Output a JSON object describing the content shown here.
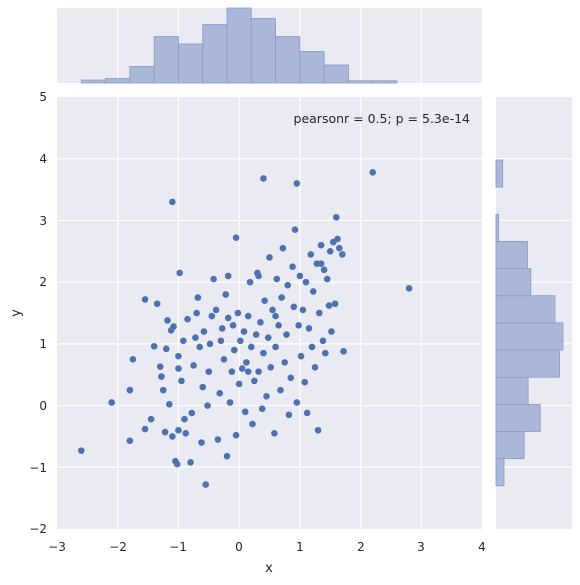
{
  "chart_data": {
    "type": "scatter",
    "xlabel": "x",
    "ylabel": "y",
    "xlim": [
      -3,
      4
    ],
    "ylim": [
      -2,
      5
    ],
    "xticks": [
      "−3",
      "−2",
      "−1",
      "0",
      "1",
      "2",
      "3",
      "4"
    ],
    "yticks": [
      "−2",
      "−1",
      "0",
      "1",
      "2",
      "3",
      "4",
      "5"
    ],
    "grid": true,
    "annotation": "pearsonr = 0.5; p = 5.3e-14",
    "colors": {
      "background": "#eaeaf2",
      "points": "#4c72b0",
      "hist": "#a9b8d8",
      "grid": "#ffffff"
    },
    "points": [
      [
        -2.6,
        -0.73
      ],
      [
        -2.1,
        0.05
      ],
      [
        -1.8,
        -0.57
      ],
      [
        -1.8,
        0.25
      ],
      [
        -1.75,
        0.75
      ],
      [
        -1.55,
        -0.38
      ],
      [
        -1.55,
        1.72
      ],
      [
        -1.45,
        -0.22
      ],
      [
        -1.4,
        0.96
      ],
      [
        -1.35,
        1.65
      ],
      [
        -1.3,
        0.63
      ],
      [
        -1.28,
        0.47
      ],
      [
        -1.25,
        0.25
      ],
      [
        -1.22,
        -0.43
      ],
      [
        -1.2,
        0.92
      ],
      [
        -1.18,
        1.38
      ],
      [
        -1.15,
        0.02
      ],
      [
        -1.12,
        1.22
      ],
      [
        -1.1,
        -0.5
      ],
      [
        -1.08,
        1.28
      ],
      [
        -1.1,
        3.3
      ],
      [
        -1.05,
        -0.9
      ],
      [
        -1.02,
        -0.95
      ],
      [
        -1.0,
        -0.4
      ],
      [
        -1.0,
        0.8
      ],
      [
        -0.98,
        2.15
      ],
      [
        -0.95,
        0.4
      ],
      [
        -0.92,
        1.05
      ],
      [
        -0.9,
        -0.22
      ],
      [
        -0.88,
        -0.45
      ],
      [
        -0.85,
        1.4
      ],
      [
        -0.8,
        -0.92
      ],
      [
        -0.78,
        -0.12
      ],
      [
        -0.75,
        0.65
      ],
      [
        -0.72,
        1.1
      ],
      [
        -0.7,
        1.5
      ],
      [
        -0.68,
        1.75
      ],
      [
        -0.65,
        0.95
      ],
      [
        -0.62,
        -0.6
      ],
      [
        -0.6,
        0.3
      ],
      [
        -0.58,
        1.2
      ],
      [
        -0.55,
        -1.28
      ],
      [
        -0.52,
        0.0
      ],
      [
        -0.5,
        0.55
      ],
      [
        -0.48,
        1.0
      ],
      [
        -0.45,
        1.45
      ],
      [
        -0.42,
        2.05
      ],
      [
        -0.38,
        1.55
      ],
      [
        -0.35,
        -0.55
      ],
      [
        -0.32,
        0.2
      ],
      [
        -0.3,
        1.05
      ],
      [
        -0.28,
        1.25
      ],
      [
        -0.25,
        0.75
      ],
      [
        -0.22,
        1.8
      ],
      [
        -0.2,
        -0.82
      ],
      [
        -0.18,
        2.1
      ],
      [
        -0.15,
        0.05
      ],
      [
        -0.12,
        0.55
      ],
      [
        -0.1,
        1.3
      ],
      [
        -0.08,
        0.9
      ],
      [
        -0.05,
        -0.48
      ],
      [
        -0.02,
        1.5
      ],
      [
        0.0,
        0.35
      ],
      [
        0.02,
        1.05
      ],
      [
        0.05,
        0.6
      ],
      [
        0.08,
        1.2
      ],
      [
        0.1,
        -0.1
      ],
      [
        0.12,
        0.7
      ],
      [
        0.15,
        1.45
      ],
      [
        0.18,
        2.0
      ],
      [
        0.2,
        0.95
      ],
      [
        0.22,
        -0.3
      ],
      [
        0.25,
        0.4
      ],
      [
        0.28,
        1.15
      ],
      [
        0.3,
        2.15
      ],
      [
        0.32,
        0.55
      ],
      [
        0.35,
        1.35
      ],
      [
        0.38,
        -0.05
      ],
      [
        0.4,
        0.85
      ],
      [
        0.42,
        1.7
      ],
      [
        0.45,
        0.15
      ],
      [
        0.48,
        1.1
      ],
      [
        0.5,
        2.4
      ],
      [
        0.52,
        0.62
      ],
      [
        0.55,
        1.55
      ],
      [
        0.58,
        -0.45
      ],
      [
        0.6,
        0.95
      ],
      [
        0.62,
        2.05
      ],
      [
        0.65,
        1.3
      ],
      [
        0.68,
        0.25
      ],
      [
        0.7,
        1.75
      ],
      [
        0.72,
        2.55
      ],
      [
        0.75,
        0.7
      ],
      [
        0.78,
        1.15
      ],
      [
        0.8,
        1.95
      ],
      [
        0.82,
        -0.15
      ],
      [
        0.85,
        0.45
      ],
      [
        0.88,
        2.25
      ],
      [
        0.9,
        1.6
      ],
      [
        0.92,
        2.85
      ],
      [
        0.95,
        0.05
      ],
      [
        0.98,
        1.3
      ],
      [
        1.0,
        2.1
      ],
      [
        1.02,
        0.8
      ],
      [
        1.05,
        1.55
      ],
      [
        1.08,
        0.38
      ],
      [
        1.1,
        2.0
      ],
      [
        1.12,
        -0.12
      ],
      [
        1.15,
        1.25
      ],
      [
        1.18,
        2.45
      ],
      [
        1.2,
        0.95
      ],
      [
        1.22,
        1.85
      ],
      [
        1.25,
        0.62
      ],
      [
        1.28,
        2.3
      ],
      [
        1.3,
        -0.4
      ],
      [
        1.32,
        1.5
      ],
      [
        1.35,
        2.6
      ],
      [
        1.38,
        1.05
      ],
      [
        1.4,
        2.2
      ],
      [
        1.42,
        0.85
      ],
      [
        1.45,
        2.05
      ],
      [
        1.48,
        1.62
      ],
      [
        1.5,
        2.5
      ],
      [
        1.52,
        1.2
      ],
      [
        1.55,
        2.65
      ],
      [
        1.58,
        1.65
      ],
      [
        1.6,
        3.05
      ],
      [
        1.62,
        2.7
      ],
      [
        1.65,
        2.55
      ],
      [
        1.7,
        2.45
      ],
      [
        1.72,
        0.88
      ],
      [
        2.2,
        3.78
      ],
      [
        2.8,
        1.9
      ],
      [
        0.4,
        3.68
      ],
      [
        0.95,
        3.6
      ],
      [
        -0.05,
        2.72
      ],
      [
        0.32,
        2.1
      ],
      [
        -0.18,
        1.42
      ],
      [
        0.6,
        1.45
      ],
      [
        1.35,
        2.3
      ],
      [
        -1.0,
        0.6
      ],
      [
        0.15,
        0.55
      ]
    ],
    "x_hist": {
      "bins": [
        -2.6,
        -2.2,
        -1.8,
        -1.4,
        -1.0,
        -0.6,
        -0.2,
        0.2,
        0.6,
        1.0,
        1.4,
        1.8,
        2.2,
        2.6
      ],
      "heights": [
        0.04,
        0.06,
        0.22,
        0.62,
        0.52,
        0.78,
        1.0,
        0.86,
        0.62,
        0.42,
        0.24,
        0.03,
        0.03
      ]
    },
    "y_hist": {
      "bins": [
        -1.3,
        -0.86,
        -0.42,
        0.02,
        0.46,
        0.9,
        1.34,
        1.78,
        2.22,
        2.66,
        3.1,
        3.54,
        3.98
      ],
      "heights": [
        0.12,
        0.42,
        0.66,
        0.48,
        0.95,
        1.0,
        0.88,
        0.52,
        0.47,
        0.04,
        0.0,
        0.1
      ]
    }
  }
}
